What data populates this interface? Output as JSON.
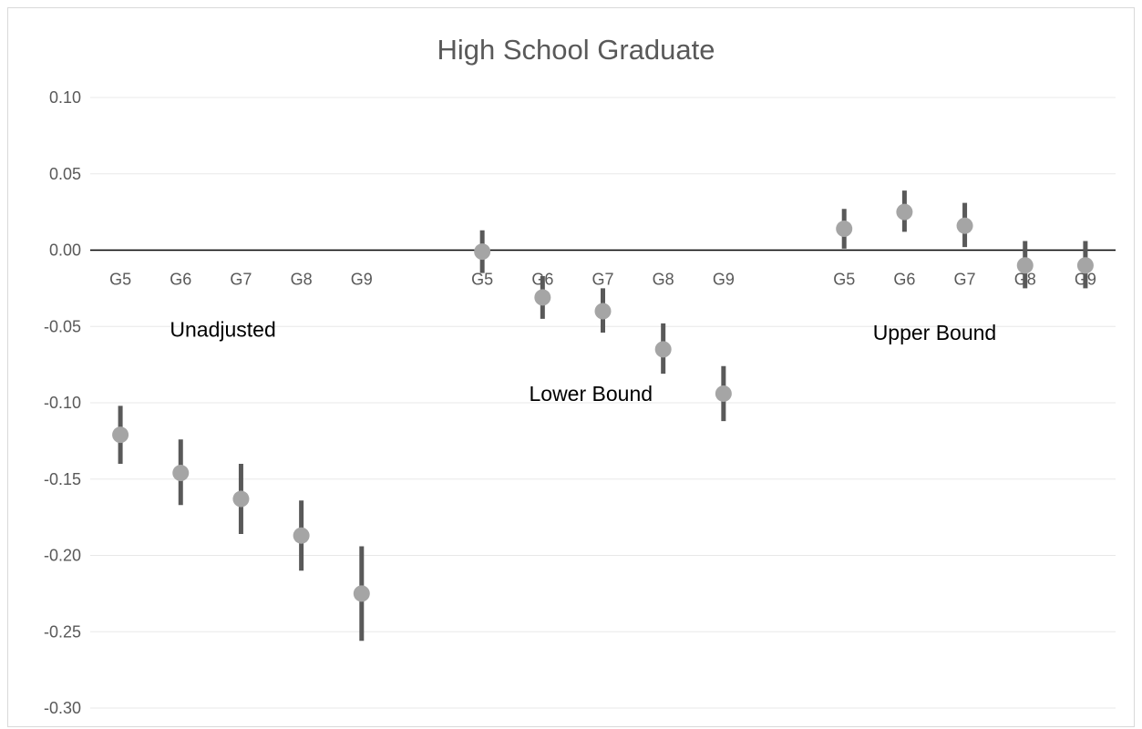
{
  "chart_data": {
    "type": "scatter",
    "title": "High School Graduate",
    "xlabel": "",
    "ylabel": "",
    "ylim": [
      -0.3,
      0.1
    ],
    "yticks": [
      "0.10",
      "0.05",
      "0.00",
      "-0.05",
      "-0.10",
      "-0.15",
      "-0.20",
      "-0.25",
      "-0.30"
    ],
    "ytick_values": [
      0.1,
      0.05,
      0.0,
      -0.05,
      -0.1,
      -0.15,
      -0.2,
      -0.25,
      -0.3
    ],
    "grid": true,
    "categories": [
      "G5",
      "G6",
      "G7",
      "G8",
      "G9",
      "",
      "G5",
      "G6",
      "G7",
      "G8",
      "G9",
      "",
      "G5",
      "G6",
      "G7",
      "G8",
      "G9"
    ],
    "series": [
      {
        "points": [
          {
            "cat": 0,
            "label": "G5",
            "y": -0.121,
            "lo": -0.14,
            "hi": -0.102
          },
          {
            "cat": 1,
            "label": "G6",
            "y": -0.146,
            "lo": -0.167,
            "hi": -0.124
          },
          {
            "cat": 2,
            "label": "G7",
            "y": -0.163,
            "lo": -0.186,
            "hi": -0.14
          },
          {
            "cat": 3,
            "label": "G8",
            "y": -0.187,
            "lo": -0.21,
            "hi": -0.164
          },
          {
            "cat": 4,
            "label": "G9",
            "y": -0.225,
            "lo": -0.256,
            "hi": -0.194
          }
        ]
      },
      {
        "points": [
          {
            "cat": 6,
            "label": "G5",
            "y": -0.001,
            "lo": -0.015,
            "hi": 0.013
          },
          {
            "cat": 7,
            "label": "G6",
            "y": -0.031,
            "lo": -0.045,
            "hi": -0.017
          },
          {
            "cat": 8,
            "label": "G7",
            "y": -0.04,
            "lo": -0.054,
            "hi": -0.025
          },
          {
            "cat": 9,
            "label": "G8",
            "y": -0.065,
            "lo": -0.081,
            "hi": -0.048
          },
          {
            "cat": 10,
            "label": "G9",
            "y": -0.094,
            "lo": -0.112,
            "hi": -0.076
          }
        ]
      },
      {
        "points": [
          {
            "cat": 12,
            "label": "G5",
            "y": 0.014,
            "lo": 0.001,
            "hi": 0.027
          },
          {
            "cat": 13,
            "label": "G6",
            "y": 0.025,
            "lo": 0.012,
            "hi": 0.039
          },
          {
            "cat": 14,
            "label": "G7",
            "y": 0.016,
            "lo": 0.002,
            "hi": 0.031
          },
          {
            "cat": 15,
            "label": "G8",
            "y": -0.01,
            "lo": -0.025,
            "hi": 0.006
          },
          {
            "cat": 16,
            "label": "G9",
            "y": -0.01,
            "lo": -0.025,
            "hi": 0.006
          }
        ]
      }
    ],
    "annotations": [
      {
        "text": "Unadjusted",
        "cat": 1.7,
        "y": -0.052
      },
      {
        "text": "Lower Bound",
        "cat": 7.8,
        "y": -0.094
      },
      {
        "text": "Upper Bound",
        "cat": 13.5,
        "y": -0.054
      }
    ],
    "colors": {
      "marker": "#a5a5a5",
      "errorbar": "#595959",
      "grid": "#e8e8e8",
      "axis": "#000000",
      "text": "#595959"
    }
  }
}
